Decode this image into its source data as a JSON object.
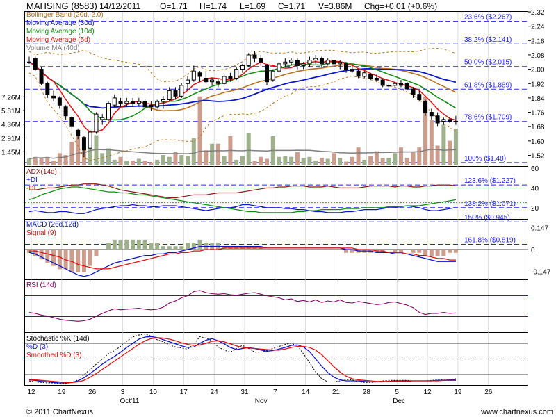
{
  "header": {
    "symbol": "MAHSING (8583)",
    "date": "14/12/2011",
    "open": "O=1.71",
    "high": "H=1.74",
    "low": "L=1.69",
    "close": "C=1.71",
    "volume": "V=3.86M",
    "change": "Chg=+0.01 (+0.6%)"
  },
  "footer": {
    "copyright": "© 2011 ChartNexus",
    "url": "www.chartnexus.com"
  },
  "colors": {
    "up": "#ffffff",
    "down": "#000000",
    "bollinger": "#b8731c",
    "ma30": "#0a14c8",
    "ma10": "#0e8a0e",
    "ma5": "#e01010",
    "volume_ma": "#808080",
    "vol_up": "#9fb08d",
    "vol_down": "#cc9d8c",
    "fib_line": "#2020ff",
    "adx": "#8b1a1a",
    "plus_di": "#0a14c8",
    "minus_di": "#0e8a0e",
    "macd": "#0a14c8",
    "signal": "#e01010",
    "rsi": "#800060",
    "stoch_k": "#0a14c8",
    "stoch_d": "#000000",
    "stoch_sd": "#e01010"
  },
  "chart_data": {
    "type": "candlestick",
    "x_ticks": {
      "days": [
        "12",
        "19",
        "26",
        "3",
        "10",
        "17",
        "24",
        "31",
        "7",
        "14",
        "21",
        "28",
        "5",
        "12",
        "19",
        "26"
      ],
      "months": [
        "Oct'11",
        "Nov",
        "Dec"
      ]
    },
    "price_panel": {
      "legend": [
        "Bollinger Band (20d, 2.0)",
        "Moving Average (30d)",
        "Moving Average (10d)",
        "Moving Average (5d)",
        "Volume MA (40d)"
      ],
      "ylim": [
        1.46,
        2.32
      ],
      "y_ticks": [
        1.52,
        1.6,
        1.68,
        1.76,
        1.84,
        1.92,
        2.0,
        2.08,
        2.16,
        2.24,
        2.32
      ],
      "y_tick_labels": [
        "1.52",
        "1.60",
        "1.68",
        "1.76",
        "1.84",
        "1.92",
        "2.00",
        "2.08",
        "2.16",
        "2.24",
        "2.32"
      ],
      "fib_levels": [
        {
          "label": "23.6% ($2.267)",
          "value": 2.267
        },
        {
          "label": "38.2% ($2.141)",
          "value": 2.141
        },
        {
          "label": "50.0% ($2.015)",
          "value": 2.015
        },
        {
          "label": "61.8% ($1.889)",
          "value": 1.889
        },
        {
          "label": "78.6% ($1.709)",
          "value": 1.709
        },
        {
          "label": "100% ($1.48)",
          "value": 1.48
        }
      ],
      "volume_ticks": [
        "7.26M",
        "5.81M",
        "4.36M",
        "2.91M",
        "1.45M"
      ],
      "volume_tick_values": [
        7.26,
        5.81,
        4.36,
        2.91,
        1.45
      ],
      "candles": [
        [
          2.04,
          2.07,
          2.03,
          2.04
        ],
        [
          2.06,
          2.07,
          1.99,
          2.0
        ],
        [
          2.0,
          2.01,
          1.91,
          1.92
        ],
        [
          1.92,
          1.93,
          1.84,
          1.86
        ],
        [
          1.85,
          1.88,
          1.82,
          1.84
        ],
        [
          1.84,
          1.85,
          1.78,
          1.8
        ],
        [
          1.79,
          1.8,
          1.72,
          1.74
        ],
        [
          1.73,
          1.74,
          1.66,
          1.68
        ],
        [
          1.66,
          1.67,
          1.61,
          1.63
        ],
        [
          1.62,
          1.63,
          1.51,
          1.55
        ],
        [
          1.56,
          1.66,
          1.55,
          1.65
        ],
        [
          1.65,
          1.76,
          1.64,
          1.75
        ],
        [
          1.72,
          1.75,
          1.69,
          1.73
        ],
        [
          1.72,
          1.82,
          1.71,
          1.81
        ],
        [
          1.8,
          1.86,
          1.79,
          1.84
        ],
        [
          1.82,
          1.84,
          1.79,
          1.81
        ],
        [
          1.81,
          1.84,
          1.79,
          1.82
        ],
        [
          1.82,
          1.84,
          1.79,
          1.81
        ],
        [
          1.81,
          1.84,
          1.79,
          1.82
        ],
        [
          1.82,
          1.83,
          1.78,
          1.79
        ],
        [
          1.8,
          1.82,
          1.77,
          1.79
        ],
        [
          1.79,
          1.83,
          1.78,
          1.82
        ],
        [
          1.82,
          1.85,
          1.78,
          1.83
        ],
        [
          1.83,
          1.9,
          1.82,
          1.88
        ],
        [
          1.88,
          1.9,
          1.83,
          1.85
        ],
        [
          1.85,
          1.92,
          1.84,
          1.91
        ],
        [
          1.92,
          1.96,
          1.88,
          1.94
        ],
        [
          1.94,
          2.02,
          1.93,
          1.99
        ],
        [
          1.98,
          1.99,
          1.93,
          1.96
        ],
        [
          1.95,
          1.99,
          1.92,
          1.93
        ],
        [
          1.93,
          1.95,
          1.91,
          1.94
        ],
        [
          1.93,
          1.95,
          1.9,
          1.92
        ],
        [
          1.92,
          1.97,
          1.91,
          1.96
        ],
        [
          1.96,
          1.98,
          1.93,
          1.95
        ],
        [
          1.95,
          2.01,
          1.94,
          2.0
        ],
        [
          2.0,
          2.03,
          1.98,
          2.02
        ],
        [
          2.02,
          2.09,
          2.01,
          2.08
        ],
        [
          2.08,
          2.1,
          2.04,
          2.06
        ],
        [
          2.06,
          2.08,
          2.02,
          2.04
        ],
        [
          2.02,
          2.03,
          1.91,
          1.93
        ],
        [
          1.94,
          2.0,
          1.93,
          1.99
        ],
        [
          1.99,
          2.04,
          1.98,
          2.03
        ],
        [
          2.03,
          2.06,
          2.01,
          2.04
        ],
        [
          2.04,
          2.06,
          2.02,
          2.05
        ],
        [
          2.05,
          2.06,
          2.0,
          2.02
        ],
        [
          2.02,
          2.04,
          2.0,
          2.03
        ],
        [
          2.03,
          2.07,
          2.01,
          2.05
        ],
        [
          2.05,
          2.08,
          2.03,
          2.06
        ],
        [
          2.06,
          2.07,
          2.01,
          2.03
        ],
        [
          2.03,
          2.06,
          2.02,
          2.05
        ],
        [
          2.05,
          2.06,
          2.0,
          2.03
        ],
        [
          2.03,
          2.05,
          2.0,
          2.04
        ],
        [
          2.03,
          2.04,
          1.98,
          2.0
        ],
        [
          2.0,
          2.02,
          1.98,
          1.99
        ],
        [
          1.99,
          2.0,
          1.95,
          1.96
        ],
        [
          1.96,
          1.99,
          1.95,
          1.98
        ],
        [
          1.97,
          1.98,
          1.94,
          1.95
        ],
        [
          1.95,
          1.97,
          1.93,
          1.94
        ],
        [
          1.94,
          1.95,
          1.9,
          1.91
        ],
        [
          1.91,
          1.92,
          1.89,
          1.91
        ],
        [
          1.91,
          1.93,
          1.9,
          1.92
        ],
        [
          1.92,
          1.94,
          1.9,
          1.91
        ],
        [
          1.92,
          1.93,
          1.88,
          1.89
        ],
        [
          1.89,
          1.9,
          1.84,
          1.86
        ],
        [
          1.86,
          1.88,
          1.82,
          1.83
        ],
        [
          1.82,
          1.83,
          1.74,
          1.76
        ],
        [
          1.76,
          1.78,
          1.72,
          1.74
        ],
        [
          1.74,
          1.76,
          1.68,
          1.7
        ],
        [
          1.71,
          1.73,
          1.69,
          1.72
        ],
        [
          1.72,
          1.73,
          1.7,
          1.71
        ],
        [
          1.71,
          1.74,
          1.69,
          1.71
        ]
      ],
      "volumes": [
        0.7,
        0.9,
        0.8,
        0.9,
        0.5,
        1.3,
        1.1,
        2.5,
        3.1,
        1.6,
        3.7,
        3.2,
        1.3,
        1.8,
        0.6,
        0.9,
        0.5,
        0.5,
        0.7,
        0.5,
        0.3,
        0.6,
        1.1,
        0.9,
        1.4,
        1.1,
        1.0,
        2.9,
        7.3,
        1.6,
        2.3,
        2.3,
        1.0,
        3.1,
        0.6,
        1.0,
        3.4,
        0.5,
        0.9,
        0.7,
        3.1,
        0.9,
        1.0,
        0.9,
        1.4,
        0.8,
        0.9,
        0.5,
        0.8,
        0.7,
        1.3,
        0.8,
        0.4,
        0.9,
        1.9,
        0.6,
        1.0,
        1.5,
        0.8,
        0.8,
        1.3,
        1.9,
        0.8,
        1.4,
        1.9,
        7.3,
        4.8,
        2.1,
        4.3,
        2.6,
        3.9
      ]
    },
    "adx_panel": {
      "legend": [
        "ADX(14d)",
        "+DI",
        "-DI"
      ],
      "ylim": [
        10,
        60
      ],
      "y_ticks": [
        20,
        40,
        60
      ],
      "fib_levels": [
        {
          "label": "123.6% ($1.227)",
          "value": 43
        },
        {
          "label": "138.2% ($1.071)",
          "value": 20
        }
      ],
      "adx": [
        38,
        38,
        39,
        40,
        40,
        41,
        42,
        43,
        43,
        44,
        44,
        44,
        43,
        42,
        40,
        38,
        37,
        36,
        35,
        34,
        33,
        32,
        31,
        30,
        30,
        31,
        32,
        33,
        33,
        33,
        34,
        35,
        35,
        35,
        35,
        36,
        37,
        38,
        39,
        40,
        40,
        41,
        41,
        42,
        42,
        42,
        41,
        41,
        41,
        42,
        41,
        40,
        40,
        40,
        40,
        41,
        42,
        42,
        42,
        42,
        41,
        42,
        42,
        41,
        41,
        42,
        42,
        43,
        43,
        43,
        42
      ],
      "plus_di": [
        16,
        17,
        16,
        15,
        15,
        16,
        16,
        15,
        14,
        14,
        16,
        18,
        19,
        20,
        21,
        22,
        22,
        23,
        22,
        22,
        21,
        21,
        22,
        22,
        22,
        21,
        20,
        19,
        18,
        17,
        18,
        19,
        20,
        20,
        21,
        23,
        23,
        22,
        21,
        20,
        20,
        20,
        19,
        19,
        18,
        18,
        17,
        16,
        16,
        15,
        15,
        15,
        16,
        16,
        17,
        18,
        18,
        18,
        19,
        20,
        20,
        21,
        22,
        21,
        20,
        18,
        17,
        17,
        18,
        19,
        20
      ],
      "minus_di": [
        28,
        30,
        33,
        35,
        37,
        39,
        40,
        41,
        41,
        40,
        39,
        38,
        37,
        36,
        36,
        35,
        35,
        34,
        33,
        33,
        32,
        31,
        30,
        29,
        28,
        27,
        26,
        25,
        24,
        23,
        22,
        21,
        20,
        19,
        18,
        17,
        16,
        16,
        15,
        15,
        15,
        15,
        15,
        15,
        16,
        16,
        17,
        17,
        18,
        18,
        18,
        18,
        19,
        19,
        19,
        20,
        20,
        20,
        20,
        21,
        21,
        21,
        22,
        22,
        22,
        23,
        24,
        25,
        26,
        27,
        28
      ]
    },
    "macd_panel": {
      "legend": [
        "MACD (26d,12d)",
        "Signal (9)"
      ],
      "ylim": [
        -0.2,
        0.2
      ],
      "y_ticks": [
        0.147,
        0,
        -0.147
      ],
      "y_tick_labels": [
        "0.147",
        "0",
        "-0.147"
      ],
      "fib_levels": [
        {
          "label": "150% ($0.945)",
          "value": 0.185
        },
        {
          "label": "161.8% ($0.819)",
          "value": 0.035
        }
      ],
      "macd": [
        -0.02,
        -0.03,
        -0.05,
        -0.07,
        -0.09,
        -0.11,
        -0.13,
        -0.15,
        -0.17,
        -0.18,
        -0.17,
        -0.15,
        -0.13,
        -0.11,
        -0.09,
        -0.08,
        -0.07,
        -0.06,
        -0.05,
        -0.04,
        -0.04,
        -0.03,
        -0.03,
        -0.02,
        -0.02,
        -0.01,
        0.0,
        0.01,
        0.02,
        0.02,
        0.02,
        0.02,
        0.02,
        0.02,
        0.02,
        0.02,
        0.02,
        0.02,
        0.02,
        0.01,
        0.01,
        0.01,
        0.01,
        0.01,
        0.01,
        0.01,
        0.01,
        0.01,
        0.01,
        0.01,
        0.01,
        0.01,
        0.0,
        0.0,
        -0.01,
        -0.01,
        -0.01,
        -0.02,
        -0.02,
        -0.02,
        -0.03,
        -0.03,
        -0.03,
        -0.04,
        -0.05,
        -0.06,
        -0.07,
        -0.08,
        -0.08,
        -0.08,
        -0.08
      ],
      "signal": [
        -0.01,
        -0.01,
        -0.02,
        -0.03,
        -0.04,
        -0.05,
        -0.07,
        -0.08,
        -0.1,
        -0.11,
        -0.12,
        -0.13,
        -0.13,
        -0.13,
        -0.12,
        -0.11,
        -0.1,
        -0.09,
        -0.08,
        -0.07,
        -0.06,
        -0.05,
        -0.04,
        -0.03,
        -0.03,
        -0.02,
        -0.02,
        -0.01,
        -0.01,
        0.0,
        0.0,
        0.0,
        0.01,
        0.01,
        0.01,
        0.01,
        0.01,
        0.01,
        0.01,
        0.01,
        0.01,
        0.01,
        0.01,
        0.01,
        0.01,
        0.01,
        0.01,
        0.01,
        0.01,
        0.01,
        0.01,
        0.01,
        0.01,
        0.01,
        0.0,
        0.0,
        0.0,
        -0.01,
        -0.01,
        -0.02,
        -0.02,
        -0.02,
        -0.03,
        -0.03,
        -0.04,
        -0.04,
        -0.05,
        -0.06,
        -0.06,
        -0.07,
        -0.07
      ]
    },
    "rsi_panel": {
      "legend": [
        "RSI (14d)"
      ],
      "ylim": [
        0,
        100
      ],
      "bands": [
        70,
        30
      ],
      "rsi": [
        38,
        36,
        33,
        31,
        28,
        25,
        23,
        22,
        21,
        22,
        25,
        31,
        36,
        41,
        45,
        43,
        44,
        45,
        46,
        44,
        43,
        44,
        48,
        56,
        60,
        66,
        70,
        78,
        80,
        76,
        74,
        73,
        74,
        72,
        71,
        73,
        75,
        76,
        73,
        70,
        68,
        66,
        62,
        64,
        59,
        61,
        58,
        62,
        57,
        60,
        58,
        62,
        57,
        56,
        59,
        57,
        55,
        53,
        54,
        57,
        58,
        55,
        52,
        47,
        38,
        34,
        36,
        36,
        38,
        36,
        37
      ]
    },
    "stoch_panel": {
      "legend": [
        "Stochastic %K (14d)",
        "%D (3)",
        "Smoothed %D (3)"
      ],
      "ylim": [
        0,
        100
      ],
      "bands": [
        80,
        50,
        20
      ],
      "k": [
        8,
        6,
        5,
        4,
        4,
        3,
        3,
        5,
        10,
        20,
        30,
        40,
        50,
        60,
        66,
        74,
        84,
        92,
        96,
        98,
        94,
        87,
        83,
        77,
        73,
        71,
        69,
        78,
        93,
        90,
        85,
        73,
        67,
        63,
        70,
        76,
        70,
        63,
        63,
        66,
        70,
        74,
        78,
        80,
        75,
        60,
        43,
        25,
        12,
        6,
        6,
        8,
        10,
        10,
        6,
        5,
        5,
        6,
        8,
        9,
        9,
        9,
        9,
        8,
        8,
        8,
        9,
        10,
        11,
        11,
        12
      ],
      "d": [
        10,
        9,
        7,
        6,
        5,
        4,
        4,
        5,
        8,
        14,
        22,
        31,
        40,
        48,
        55,
        63,
        72,
        80,
        88,
        92,
        93,
        91,
        87,
        83,
        79,
        75,
        72,
        73,
        80,
        86,
        89,
        85,
        79,
        72,
        68,
        70,
        72,
        70,
        67,
        65,
        66,
        69,
        72,
        76,
        77,
        73,
        64,
        50,
        36,
        24,
        15,
        10,
        8,
        8,
        8,
        7,
        6,
        6,
        6,
        7,
        8,
        8,
        8,
        8,
        8,
        8,
        8,
        9,
        9,
        10,
        10
      ],
      "sd": [
        11,
        10,
        9,
        8,
        7,
        6,
        5,
        5,
        6,
        9,
        15,
        22,
        30,
        38,
        46,
        54,
        62,
        70,
        78,
        85,
        89,
        91,
        90,
        88,
        85,
        81,
        78,
        76,
        77,
        80,
        84,
        85,
        83,
        79,
        75,
        72,
        71,
        70,
        69,
        68,
        67,
        67,
        69,
        72,
        74,
        74,
        72,
        67,
        58,
        47,
        35,
        25,
        17,
        12,
        10,
        9,
        8,
        7,
        7,
        7,
        7,
        7,
        7,
        8,
        8,
        8,
        8,
        8,
        9,
        9,
        9
      ]
    }
  }
}
